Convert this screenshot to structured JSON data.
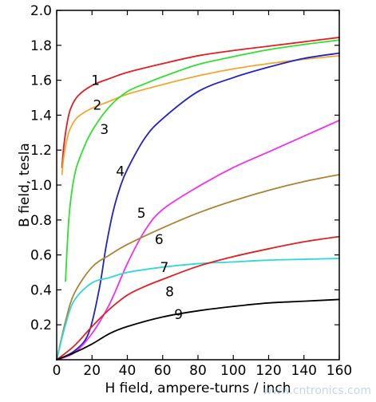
{
  "chart_data": {
    "type": "line",
    "title": "",
    "xlabel": "H field, ampere-turns / inch",
    "ylabel": "B field, tesla",
    "xlim": [
      0,
      160
    ],
    "ylim": [
      0,
      2.0
    ],
    "x_ticks": [
      0,
      20,
      40,
      60,
      80,
      100,
      120,
      140,
      160
    ],
    "y_ticks": [
      0.2,
      0.4,
      0.6,
      0.8,
      1.0,
      1.2,
      1.4,
      1.6,
      1.8,
      2.0
    ],
    "x_tick_labels": [
      "0",
      "20",
      "40",
      "60",
      "80",
      "100",
      "120",
      "140",
      "160"
    ],
    "y_tick_labels": [
      "0.2",
      "0.4",
      "0.6",
      "0.8",
      "1.0",
      "1.2",
      "1.4",
      "1.6",
      "1.8",
      "2.0"
    ],
    "grid": false,
    "series": [
      {
        "name": "1",
        "color": "#e02020",
        "label_at": [
          22,
          1.6
        ],
        "points": [
          [
            3,
            1.1
          ],
          [
            4,
            1.22
          ],
          [
            6,
            1.36
          ],
          [
            8,
            1.44
          ],
          [
            12,
            1.51
          ],
          [
            20,
            1.57
          ],
          [
            30,
            1.61
          ],
          [
            40,
            1.645
          ],
          [
            60,
            1.695
          ],
          [
            80,
            1.74
          ],
          [
            100,
            1.77
          ],
          [
            120,
            1.795
          ],
          [
            140,
            1.82
          ],
          [
            160,
            1.845
          ]
        ]
      },
      {
        "name": "2",
        "color": "#f0a830",
        "label_at": [
          23,
          1.46
        ],
        "points": [
          [
            3,
            1.06
          ],
          [
            4,
            1.16
          ],
          [
            6,
            1.27
          ],
          [
            8,
            1.33
          ],
          [
            12,
            1.39
          ],
          [
            20,
            1.44
          ],
          [
            30,
            1.48
          ],
          [
            40,
            1.52
          ],
          [
            60,
            1.575
          ],
          [
            80,
            1.625
          ],
          [
            100,
            1.665
          ],
          [
            120,
            1.695
          ],
          [
            140,
            1.72
          ],
          [
            160,
            1.74
          ]
        ]
      },
      {
        "name": "3",
        "color": "#30e030",
        "label_at": [
          27,
          1.32
        ],
        "points": [
          [
            5,
            0.45
          ],
          [
            7,
            0.82
          ],
          [
            10,
            1.05
          ],
          [
            14,
            1.18
          ],
          [
            20,
            1.31
          ],
          [
            30,
            1.45
          ],
          [
            40,
            1.535
          ],
          [
            50,
            1.58
          ],
          [
            60,
            1.62
          ],
          [
            80,
            1.69
          ],
          [
            100,
            1.735
          ],
          [
            120,
            1.775
          ],
          [
            140,
            1.805
          ],
          [
            160,
            1.83
          ]
        ]
      },
      {
        "name": "4",
        "color": "#2020c8",
        "label_at": [
          36,
          1.08
        ],
        "points": [
          [
            0,
            0.0
          ],
          [
            10,
            0.05
          ],
          [
            18,
            0.15
          ],
          [
            24,
            0.4
          ],
          [
            28,
            0.65
          ],
          [
            32,
            0.85
          ],
          [
            36,
            0.99
          ],
          [
            40,
            1.09
          ],
          [
            50,
            1.27
          ],
          [
            60,
            1.38
          ],
          [
            80,
            1.535
          ],
          [
            100,
            1.615
          ],
          [
            120,
            1.675
          ],
          [
            140,
            1.725
          ],
          [
            160,
            1.755
          ]
        ]
      },
      {
        "name": "5",
        "color": "#f030f0",
        "label_at": [
          48,
          0.84
        ],
        "points": [
          [
            0,
            0.0
          ],
          [
            10,
            0.04
          ],
          [
            20,
            0.15
          ],
          [
            30,
            0.32
          ],
          [
            40,
            0.55
          ],
          [
            50,
            0.74
          ],
          [
            60,
            0.86
          ],
          [
            80,
            0.99
          ],
          [
            100,
            1.1
          ],
          [
            120,
            1.19
          ],
          [
            140,
            1.28
          ],
          [
            160,
            1.37
          ]
        ]
      },
      {
        "name": "6",
        "color": "#b08030",
        "label_at": [
          58,
          0.69
        ],
        "points": [
          [
            0,
            0.0
          ],
          [
            5,
            0.22
          ],
          [
            10,
            0.38
          ],
          [
            20,
            0.53
          ],
          [
            30,
            0.6
          ],
          [
            40,
            0.66
          ],
          [
            60,
            0.755
          ],
          [
            80,
            0.84
          ],
          [
            100,
            0.91
          ],
          [
            120,
            0.97
          ],
          [
            140,
            1.02
          ],
          [
            160,
            1.06
          ]
        ]
      },
      {
        "name": "7",
        "color": "#30d8d8",
        "label_at": [
          61,
          0.53
        ],
        "points": [
          [
            0,
            0.0
          ],
          [
            5,
            0.2
          ],
          [
            10,
            0.34
          ],
          [
            20,
            0.44
          ],
          [
            30,
            0.47
          ],
          [
            40,
            0.5
          ],
          [
            60,
            0.53
          ],
          [
            80,
            0.55
          ],
          [
            100,
            0.56
          ],
          [
            120,
            0.57
          ],
          [
            140,
            0.575
          ],
          [
            160,
            0.58
          ]
        ]
      },
      {
        "name": "8",
        "color": "#e02020",
        "label_at": [
          64,
          0.39
        ],
        "points": [
          [
            0,
            0.0
          ],
          [
            10,
            0.08
          ],
          [
            20,
            0.19
          ],
          [
            30,
            0.29
          ],
          [
            40,
            0.37
          ],
          [
            50,
            0.42
          ],
          [
            60,
            0.46
          ],
          [
            80,
            0.535
          ],
          [
            100,
            0.59
          ],
          [
            120,
            0.635
          ],
          [
            140,
            0.675
          ],
          [
            160,
            0.705
          ]
        ]
      },
      {
        "name": "9",
        "color": "#000000",
        "label_at": [
          69,
          0.26
        ],
        "points": [
          [
            0,
            0.0
          ],
          [
            10,
            0.04
          ],
          [
            20,
            0.09
          ],
          [
            30,
            0.15
          ],
          [
            40,
            0.19
          ],
          [
            60,
            0.245
          ],
          [
            80,
            0.28
          ],
          [
            100,
            0.305
          ],
          [
            120,
            0.325
          ],
          [
            140,
            0.335
          ],
          [
            160,
            0.345
          ]
        ]
      }
    ]
  },
  "watermark": "www.cntronics.com"
}
